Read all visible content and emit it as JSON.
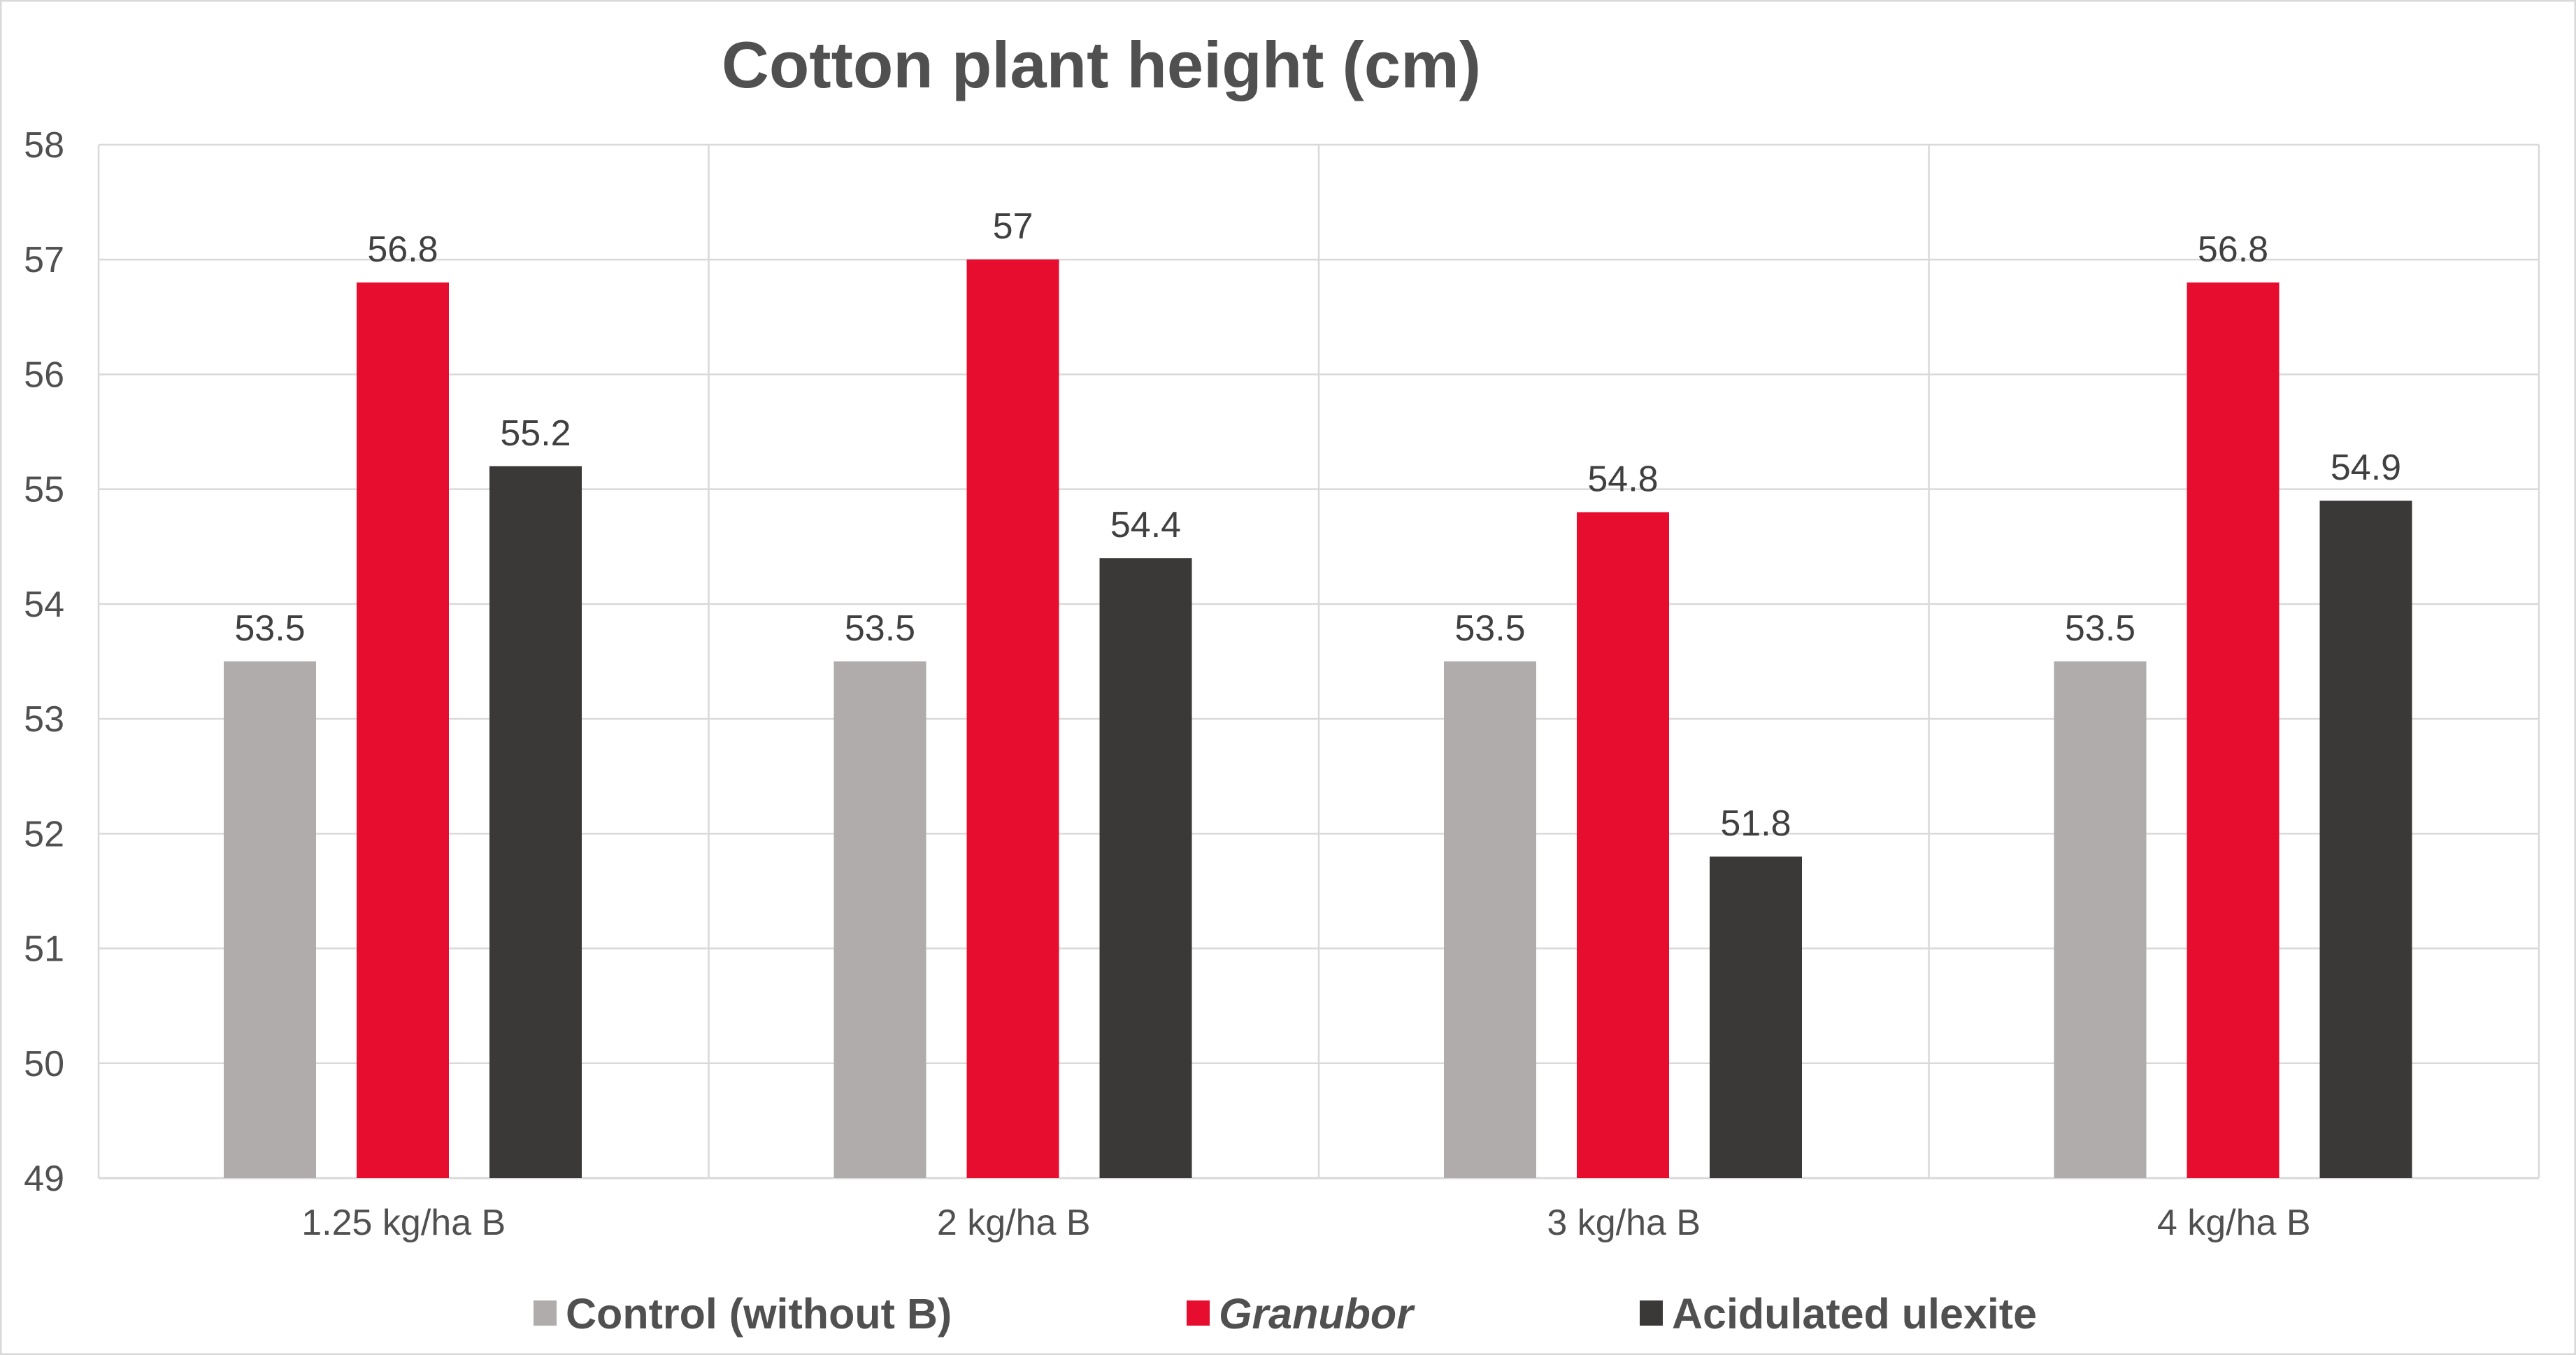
{
  "chart_data": {
    "type": "bar",
    "title": "Cotton plant height (cm)",
    "xlabel": "",
    "ylabel": "",
    "ylim": [
      49,
      58
    ],
    "yticks": [
      49,
      50,
      51,
      52,
      53,
      54,
      55,
      56,
      57,
      58
    ],
    "grid": true,
    "legend_position": "bottom",
    "categories": [
      "1.25 kg/ha B",
      "2 kg/ha B",
      "3 kg/ha B",
      "4 kg/ha B"
    ],
    "series": [
      {
        "name": "Control (without B)",
        "color": "#AFACAB",
        "italic": false,
        "values": [
          53.5,
          53.5,
          53.5,
          53.5
        ]
      },
      {
        "name": "Granubor",
        "color": "#E60D2E",
        "italic": true,
        "values": [
          56.8,
          57,
          54.8,
          56.8
        ]
      },
      {
        "name": "Acidulated ulexite",
        "color": "#3A3938",
        "italic": false,
        "values": [
          55.2,
          54.4,
          51.8,
          54.9
        ]
      }
    ]
  }
}
